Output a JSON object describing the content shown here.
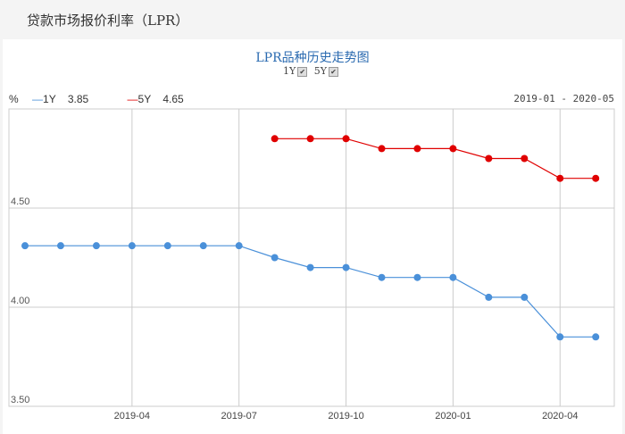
{
  "page_title": "贷款市场报价利率（LPR）",
  "toggles": {
    "y1": "1Y",
    "y5": "5Y",
    "check": "✔"
  },
  "legend": {
    "unit": "%",
    "s1_name": "1Y",
    "s1_value": "3.85",
    "s2_name": "5Y",
    "s2_value": "4.65"
  },
  "range": "2019-01 - 2020-05",
  "chart_data": {
    "type": "line",
    "title": "LPR品种历史走势图",
    "x": [
      "2019-01",
      "2019-02",
      "2019-03",
      "2019-04",
      "2019-05",
      "2019-06",
      "2019-07",
      "2019-08",
      "2019-09",
      "2019-10",
      "2019-11",
      "2019-12",
      "2020-01",
      "2020-02",
      "2020-03",
      "2020-04",
      "2020-05"
    ],
    "series": [
      {
        "name": "1Y",
        "color": "#4a90d9",
        "values": [
          4.31,
          4.31,
          4.31,
          4.31,
          4.31,
          4.31,
          4.31,
          4.25,
          4.2,
          4.2,
          4.15,
          4.15,
          4.15,
          4.05,
          4.05,
          3.85,
          3.85
        ]
      },
      {
        "name": "5Y",
        "color": "#e00000",
        "values": [
          null,
          null,
          null,
          null,
          null,
          null,
          null,
          4.85,
          4.85,
          4.85,
          4.8,
          4.8,
          4.8,
          4.75,
          4.75,
          4.65,
          4.65
        ]
      }
    ],
    "ylim": [
      3.5,
      5.0
    ],
    "yticks": [
      "3.50",
      "4.00",
      "4.50"
    ],
    "xticks": [
      "2019-04",
      "2019-07",
      "2019-10",
      "2020-01",
      "2020-04"
    ],
    "grid": true
  }
}
